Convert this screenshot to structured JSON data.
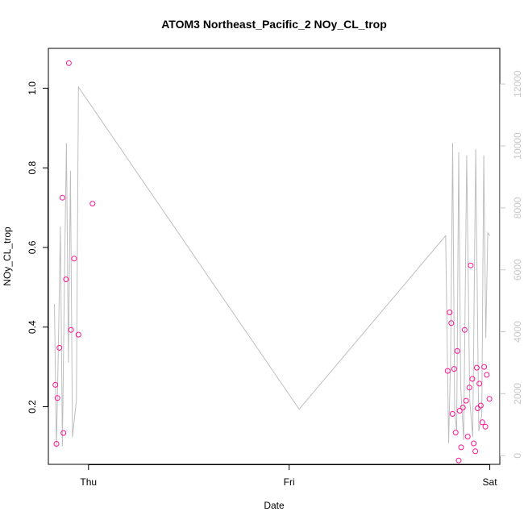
{
  "chart_data": {
    "type": "scatter",
    "title": "ATOM3 Northeast_Pacific_2 NOy_CL_trop",
    "xlabel": "Date",
    "ylabel": "NOy_CL_trop",
    "x_ticks": [
      "Thu",
      "Fri",
      "Sat"
    ],
    "y_ticks": [
      "0.2",
      "0.4",
      "0.6",
      "0.8",
      "1.0"
    ],
    "y2_ticks": [
      "0",
      "2000",
      "4000",
      "6000",
      "8000",
      "10000",
      "12000"
    ],
    "xlim_days": [
      -0.2,
      2.05
    ],
    "ylim": [
      0.0553,
      1.1
    ],
    "y2lim": [
      -280,
      13150
    ],
    "colors": {
      "points": "#ff1493",
      "line": "#bebebe",
      "right_axis": "#c8c8c8",
      "box": "#000000"
    },
    "series": [
      {
        "kind": "points",
        "axis": "left",
        "x_days": [
          -0.165,
          -0.16,
          -0.155,
          -0.145,
          -0.13,
          -0.125,
          -0.112,
          -0.098,
          -0.087,
          -0.072,
          -0.05,
          0.02,
          1.79,
          1.8,
          1.808,
          1.814,
          1.822,
          1.83,
          1.838,
          1.845,
          1.85,
          1.857,
          1.866,
          1.875,
          1.882,
          1.89,
          1.898,
          1.905,
          1.913,
          1.92,
          1.928,
          1.935,
          1.94,
          1.948,
          1.955,
          1.963,
          1.972,
          1.978,
          1.985,
          1.998
        ],
        "y": [
          0.255,
          0.107,
          0.222,
          0.348,
          0.725,
          0.134,
          0.52,
          1.063,
          0.393,
          0.572,
          0.381,
          0.71,
          0.29,
          0.437,
          0.41,
          0.182,
          0.295,
          0.135,
          0.34,
          0.065,
          0.19,
          0.098,
          0.198,
          0.393,
          0.215,
          0.125,
          0.248,
          0.555,
          0.27,
          0.108,
          0.088,
          0.298,
          0.196,
          0.258,
          0.203,
          0.161,
          0.3,
          0.15,
          0.28,
          0.22
        ]
      },
      {
        "kind": "line",
        "axis": "right",
        "x_days": [
          -0.17,
          -0.16,
          -0.15,
          -0.14,
          -0.13,
          -0.12,
          -0.11,
          -0.1,
          -0.09,
          -0.08,
          -0.06,
          -0.05,
          1.05,
          1.78,
          1.795,
          1.805,
          1.815,
          1.825,
          1.835,
          1.845,
          1.855,
          1.87,
          1.885,
          1.9,
          1.915,
          1.93,
          1.945,
          1.96,
          1.97,
          1.98,
          1.99,
          2.0
        ],
        "y": [
          4900,
          250,
          3500,
          7400,
          300,
          5600,
          10100,
          3000,
          9200,
          600,
          1800,
          11900,
          1500,
          7100,
          400,
          3200,
          10100,
          1400,
          800,
          9800,
          2200,
          500,
          9700,
          1800,
          600,
          9900,
          800,
          1300,
          9700,
          3800,
          7200,
          7100
        ]
      }
    ]
  }
}
